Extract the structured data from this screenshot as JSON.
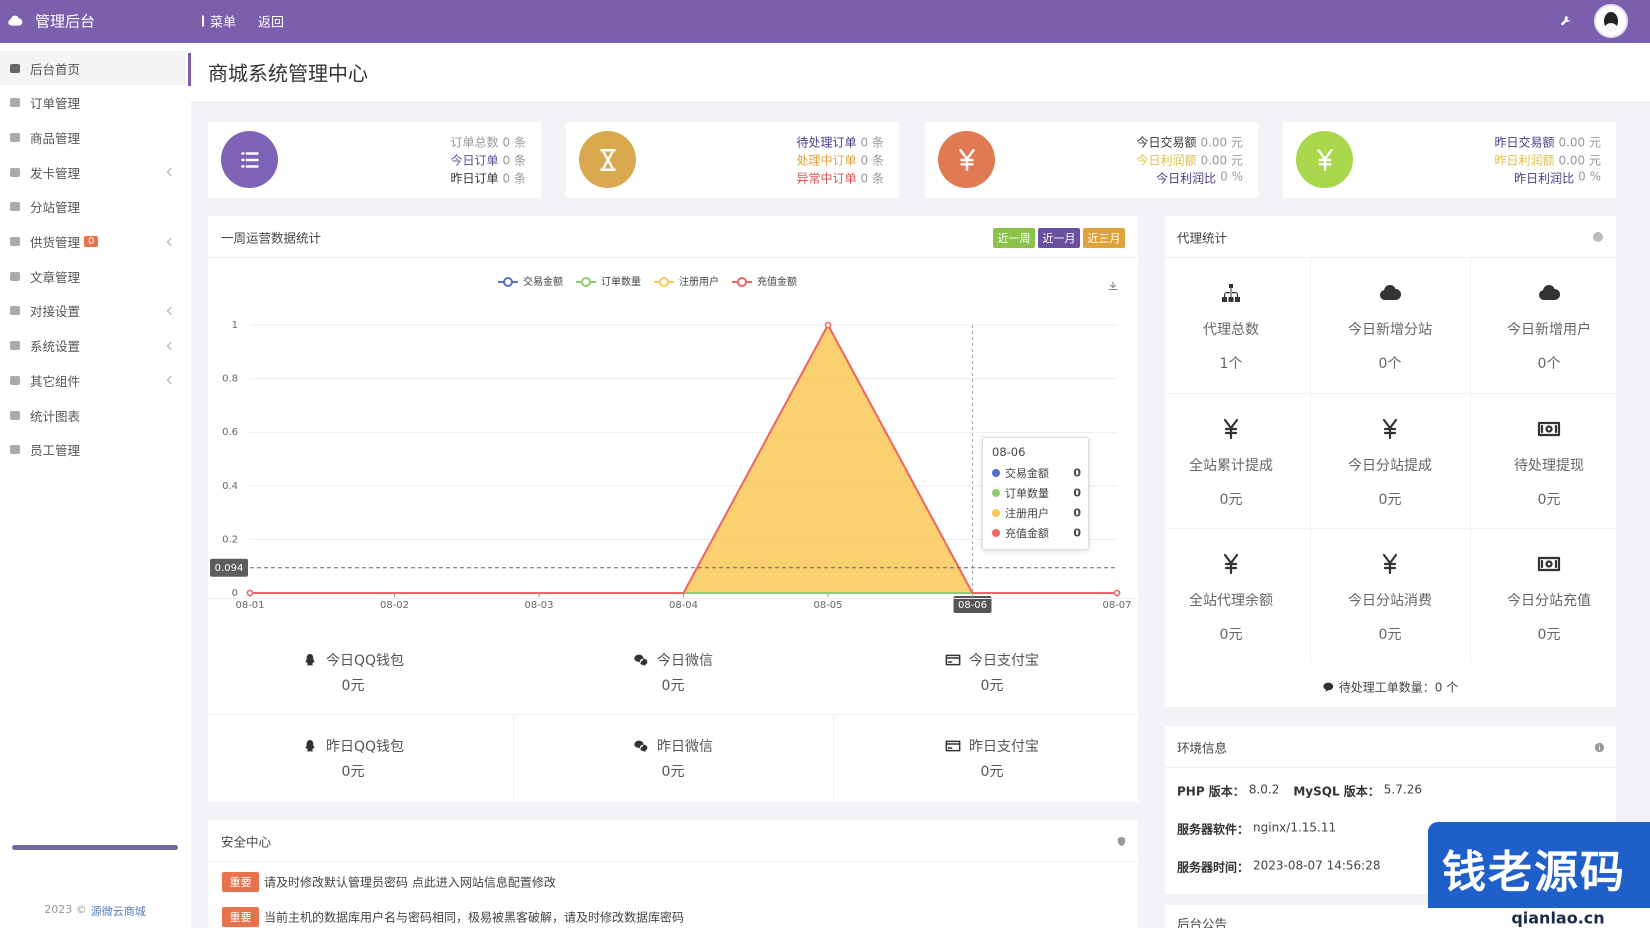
{
  "header": {
    "brand": "管理后台",
    "menu": "菜单",
    "back": "返回"
  },
  "sidebar": {
    "items": [
      "后台首页",
      "订单管理",
      "商品管理",
      "发卡管理",
      "分站管理",
      "供货管理",
      "文章管理",
      "对接设置",
      "系统设置",
      "其它组件",
      "统计图表",
      "员工管理"
    ],
    "badge": 0,
    "footer": {
      "copyright": "2023 ©",
      "link": "源微云商城"
    }
  },
  "page_title": "商城系统管理中心",
  "cards": [
    {
      "rows": [
        {
          "label": "订单总数",
          "value": "0 条"
        },
        {
          "label": "今日订单",
          "value": "0 条"
        },
        {
          "label": "昨日订单",
          "value": "0 条"
        }
      ]
    },
    {
      "rows": [
        {
          "label": "待处理订单",
          "value": "0 条"
        },
        {
          "label": "处理中订单",
          "value": "0 条"
        },
        {
          "label": "异常中订单",
          "value": "0 条"
        }
      ]
    },
    {
      "rows": [
        {
          "label": "今日交易额",
          "value": "0.00 元"
        },
        {
          "label": "今日利润额",
          "value": "0.00 元"
        },
        {
          "label": "今日利润比",
          "value": "0 %"
        }
      ]
    },
    {
      "rows": [
        {
          "label": "昨日交易额",
          "value": "0.00 元"
        },
        {
          "label": "昨日利润额",
          "value": "0.00 元"
        },
        {
          "label": "昨日利润比",
          "value": "0 %"
        }
      ]
    }
  ],
  "weekly": {
    "title": "一周运营数据统计",
    "buttons": [
      "近一周",
      "近一月",
      "近三月"
    ]
  },
  "chart_data": {
    "type": "line",
    "x": [
      "08-01",
      "08-02",
      "08-03",
      "08-04",
      "08-05",
      "08-06",
      "08-07"
    ],
    "series": [
      {
        "name": "交易金额",
        "color": "#5470c6",
        "values": [
          0,
          0,
          0,
          0,
          0,
          0,
          0
        ]
      },
      {
        "name": "订单数量",
        "color": "#91cc75",
        "values": [
          0,
          0,
          0,
          0,
          0,
          0,
          0
        ]
      },
      {
        "name": "注册用户",
        "color": "#fac858",
        "area": true,
        "values": [
          0,
          0,
          0,
          0,
          1,
          0,
          0
        ]
      },
      {
        "name": "充值金额",
        "color": "#ee6666",
        "values": [
          0,
          0,
          0,
          0,
          1,
          0,
          0
        ]
      }
    ],
    "ylim": [
      0,
      1
    ],
    "yticks": [
      0,
      0.2,
      0.4,
      0.6,
      0.8,
      1
    ],
    "mark_line": 0.094,
    "grid": true
  },
  "payments": [
    {
      "label": "今日QQ钱包",
      "value": "0元"
    },
    {
      "label": "今日微信",
      "value": "0元"
    },
    {
      "label": "今日支付宝",
      "value": "0元"
    },
    {
      "label": "昨日QQ钱包",
      "value": "0元"
    },
    {
      "label": "昨日微信",
      "value": "0元"
    },
    {
      "label": "昨日支付宝",
      "value": "0元"
    }
  ],
  "agents": {
    "title": "代理统计",
    "items": [
      {
        "label": "代理总数",
        "value": "1个"
      },
      {
        "label": "今日新增分站",
        "value": "0个"
      },
      {
        "label": "今日新增用户",
        "value": "0个"
      },
      {
        "label": "全站累计提成",
        "value": "0元"
      },
      {
        "label": "今日分站提成",
        "value": "0元"
      },
      {
        "label": "待处理提现",
        "value": "0元"
      },
      {
        "label": "全站代理余额",
        "value": "0元"
      },
      {
        "label": "今日分站消费",
        "value": "0元"
      },
      {
        "label": "今日分站充值",
        "value": "0元"
      }
    ],
    "footer": "待处理工单数量：0 个"
  },
  "env": {
    "title": "环境信息",
    "rows": [
      [
        {
          "label": "PHP 版本：",
          "value": "8.0.2"
        },
        {
          "label": "MySQL 版本：",
          "value": "5.7.26"
        }
      ],
      [
        {
          "label": "服务器软件：",
          "value": "nginx/1.15.11"
        }
      ],
      [
        {
          "label": "服务器时间：",
          "value": "2023-08-07 14:56:28"
        }
      ]
    ]
  },
  "notice": {
    "title": "后台公告"
  },
  "security": {
    "title": "安全中心",
    "items": [
      {
        "tag": "重要",
        "text": "请及时修改默认管理员密码 点此进入网站信息配置修改"
      },
      {
        "tag": "重要",
        "text": "当前主机的数据库用户名与密码相同，极易被黑客破解，请及时修改数据库密码"
      }
    ]
  },
  "watermark": {
    "title": "钱老源码",
    "url": "qianlao.cn"
  }
}
